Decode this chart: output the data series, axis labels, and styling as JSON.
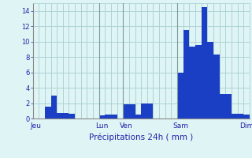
{
  "values": [
    0,
    0,
    1.5,
    3.0,
    0.7,
    0.7,
    0.6,
    0,
    0,
    0,
    0,
    0.4,
    0.5,
    0.5,
    0,
    1.8,
    1.8,
    0.5,
    2.0,
    2.0,
    0,
    0,
    0,
    0,
    6.0,
    11.5,
    9.4,
    9.6,
    14.5,
    10.0,
    8.3,
    3.2,
    3.2,
    0.6,
    0.6,
    0.5
  ],
  "day_labels": [
    "Jeu",
    "Lun",
    "Ven",
    "Sam",
    "Dim"
  ],
  "day_positions": [
    0,
    11,
    15,
    24,
    35
  ],
  "xlabel": "Précipitations 24h ( mm )",
  "ylim": [
    0,
    15
  ],
  "yticks": [
    0,
    2,
    4,
    6,
    8,
    10,
    12,
    14
  ],
  "bar_color": "#1a3fc4",
  "bar_edge_color": "#1a3fc4",
  "background_color": "#dff4f4",
  "grid_color": "#aed4d4",
  "text_color": "#2222aa",
  "vline_positions": [
    11,
    15,
    24
  ],
  "vline_color": "#7a9a9a"
}
